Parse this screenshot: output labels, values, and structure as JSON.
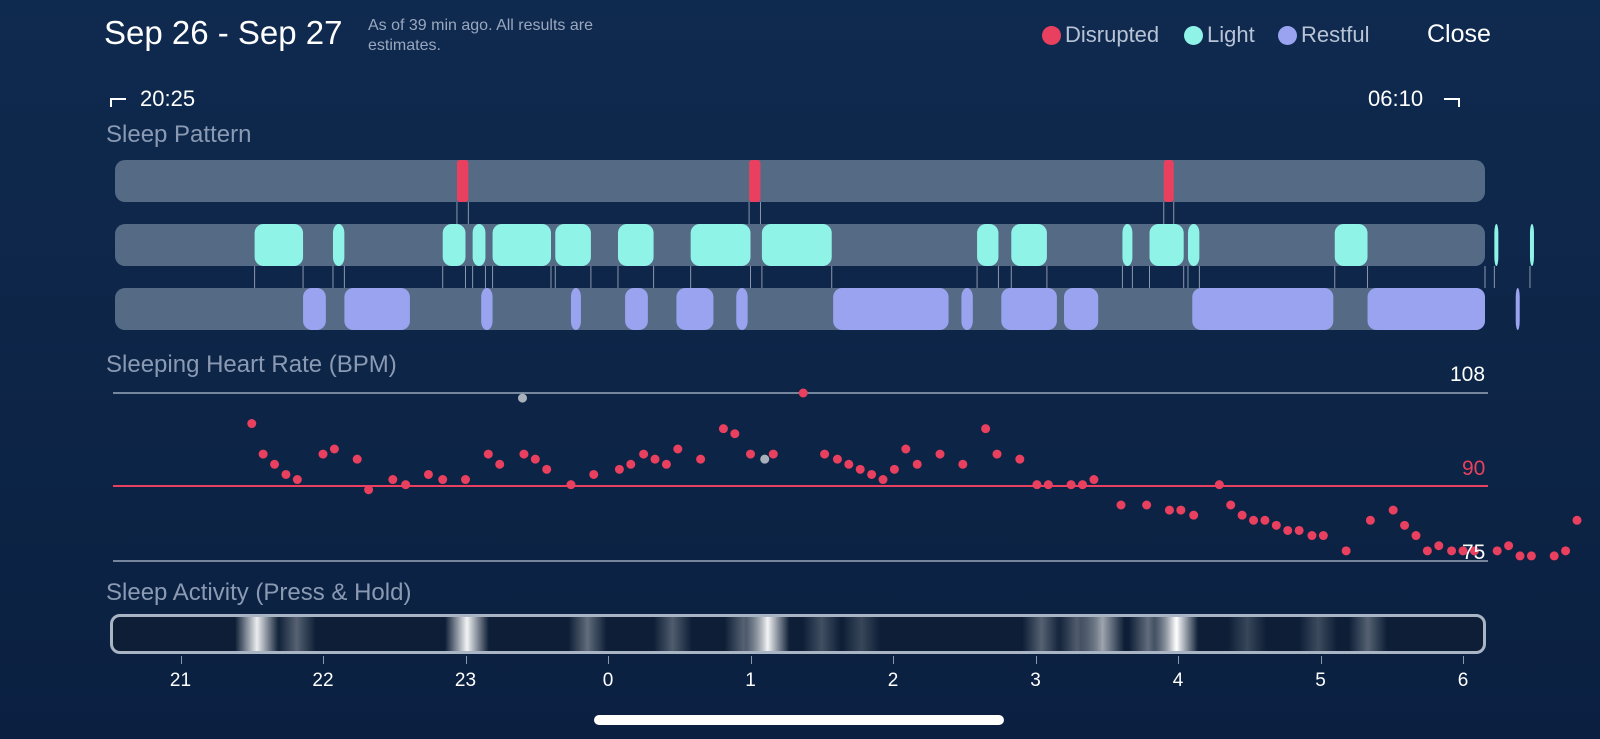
{
  "header": {
    "date_range": "Sep 26 - Sep 27",
    "as_of_note": "As of 39 min ago. All results are estimates.",
    "close_label": "Close"
  },
  "legend": [
    {
      "label": "Disrupted",
      "color": "#e8405e"
    },
    {
      "label": "Light",
      "color": "#8ff3e8"
    },
    {
      "label": "Restful",
      "color": "#9aa3f0"
    }
  ],
  "time_range": {
    "start": "20:25",
    "end": "06:10"
  },
  "sleep_pattern": {
    "title": "Sleep Pattern",
    "track_color": "#556a84",
    "disrupted_hours": [
      [
        -1.06,
        -0.98
      ],
      [
        0.99,
        1.07
      ],
      [
        3.9,
        3.97
      ]
    ],
    "light_hours": [
      [
        -2.48,
        -2.14
      ],
      [
        -1.93,
        -1.85
      ],
      [
        -1.16,
        -1.0
      ],
      [
        -0.95,
        -0.86
      ],
      [
        -0.81,
        -0.4
      ],
      [
        -0.37,
        -0.12
      ],
      [
        0.07,
        0.32
      ],
      [
        0.58,
        1.0
      ],
      [
        1.08,
        1.57
      ],
      [
        2.59,
        2.74
      ],
      [
        2.83,
        3.08
      ],
      [
        3.61,
        3.68
      ],
      [
        3.8,
        4.04
      ],
      [
        4.07,
        4.15
      ],
      [
        5.1,
        5.33
      ],
      [
        6.22,
        6.38
      ],
      [
        6.47,
        7.0
      ]
    ],
    "restful_hours": [
      [
        -2.14,
        -1.98
      ],
      [
        -1.85,
        -1.39
      ],
      [
        -0.89,
        -0.81
      ],
      [
        -0.26,
        -0.19
      ],
      [
        0.12,
        0.28
      ],
      [
        0.48,
        0.74
      ],
      [
        0.9,
        0.98
      ],
      [
        1.58,
        2.39
      ],
      [
        2.48,
        2.56
      ],
      [
        2.76,
        3.15
      ],
      [
        3.2,
        3.44
      ],
      [
        4.1,
        5.09
      ],
      [
        5.33,
        6.23
      ],
      [
        6.37,
        6.45
      ]
    ]
  },
  "heart_rate": {
    "title": "Sleeping Heart Rate (BPM)",
    "max_label": "108",
    "avg_label": "90",
    "min_label": "75",
    "ymin": 75,
    "ymax": 108,
    "avg": 90,
    "dot_color": "#e8405e",
    "muted_dot_color": "#a8b0bb",
    "points": [
      [
        -2.5,
        102
      ],
      [
        -2.42,
        96
      ],
      [
        -2.34,
        94
      ],
      [
        -2.26,
        92
      ],
      [
        -2.18,
        91
      ],
      [
        -2.0,
        96
      ],
      [
        -1.92,
        97
      ],
      [
        -1.76,
        95
      ],
      [
        -1.68,
        89
      ],
      [
        -1.51,
        91
      ],
      [
        -1.42,
        90
      ],
      [
        -1.26,
        92
      ],
      [
        -1.16,
        91
      ],
      [
        -1.0,
        91
      ],
      [
        -0.84,
        96
      ],
      [
        -0.76,
        94
      ],
      [
        -0.59,
        96
      ],
      [
        -0.51,
        95
      ],
      [
        -0.43,
        93
      ],
      [
        -0.26,
        90
      ],
      [
        -0.1,
        92
      ],
      [
        0.08,
        93
      ],
      [
        0.16,
        94
      ],
      [
        0.25,
        96
      ],
      [
        0.33,
        95
      ],
      [
        0.41,
        94
      ],
      [
        0.49,
        97
      ],
      [
        0.65,
        95
      ],
      [
        0.81,
        101
      ],
      [
        0.89,
        100
      ],
      [
        1.0,
        96
      ],
      [
        1.16,
        96
      ],
      [
        1.37,
        108
      ],
      [
        1.52,
        96
      ],
      [
        1.61,
        95
      ],
      [
        1.69,
        94
      ],
      [
        1.77,
        93
      ],
      [
        1.85,
        92
      ],
      [
        1.93,
        91
      ],
      [
        2.01,
        93
      ],
      [
        2.09,
        97
      ],
      [
        2.17,
        94
      ],
      [
        2.33,
        96
      ],
      [
        2.49,
        94
      ],
      [
        2.65,
        101
      ],
      [
        2.73,
        96
      ],
      [
        2.89,
        95
      ],
      [
        3.01,
        90
      ],
      [
        3.09,
        90
      ],
      [
        3.25,
        90
      ],
      [
        3.33,
        90
      ],
      [
        3.41,
        91
      ],
      [
        3.6,
        86
      ],
      [
        3.78,
        86
      ],
      [
        3.94,
        85
      ],
      [
        4.02,
        85
      ],
      [
        4.11,
        84
      ],
      [
        4.29,
        90
      ],
      [
        4.37,
        86
      ],
      [
        4.45,
        84
      ],
      [
        4.53,
        83
      ],
      [
        4.61,
        83
      ],
      [
        4.69,
        82
      ],
      [
        4.77,
        81
      ],
      [
        4.85,
        81
      ],
      [
        4.94,
        80
      ],
      [
        5.02,
        80
      ],
      [
        5.18,
        77
      ],
      [
        5.35,
        83
      ],
      [
        5.51,
        85
      ],
      [
        5.59,
        82
      ],
      [
        5.67,
        80
      ],
      [
        5.75,
        77
      ],
      [
        5.83,
        78
      ],
      [
        5.92,
        77
      ],
      [
        6.0,
        77
      ],
      [
        6.08,
        77
      ],
      [
        6.24,
        77
      ],
      [
        6.32,
        78
      ],
      [
        6.4,
        76
      ],
      [
        6.48,
        76
      ],
      [
        6.64,
        76
      ],
      [
        6.72,
        77
      ],
      [
        6.8,
        83
      ]
    ],
    "muted_points": [
      [
        -0.6,
        107
      ],
      [
        1.1,
        95
      ]
    ]
  },
  "activity": {
    "title": "Sleep Activity (Press & Hold)",
    "bright_hours": [
      [
        -2.48,
        0.92
      ],
      [
        -1.0,
        0.95
      ],
      [
        1.12,
        0.95
      ],
      [
        3.48,
        0.6
      ],
      [
        4.0,
        1.0
      ]
    ],
    "medium_hours": [
      [
        -2.2,
        0.3
      ],
      [
        -0.15,
        0.35
      ],
      [
        0.45,
        0.28
      ],
      [
        0.95,
        0.3
      ],
      [
        1.5,
        0.22
      ],
      [
        1.78,
        0.18
      ],
      [
        3.05,
        0.3
      ],
      [
        3.3,
        0.28
      ],
      [
        3.8,
        0.35
      ],
      [
        4.5,
        0.18
      ],
      [
        5.0,
        0.2
      ],
      [
        5.35,
        0.3
      ],
      [
        6.3,
        0.3
      ]
    ],
    "idle_from_hour": 6.65
  },
  "x_axis": {
    "ticks": [
      "21",
      "22",
      "23",
      "0",
      "1",
      "2",
      "3",
      "4",
      "5",
      "6"
    ]
  }
}
